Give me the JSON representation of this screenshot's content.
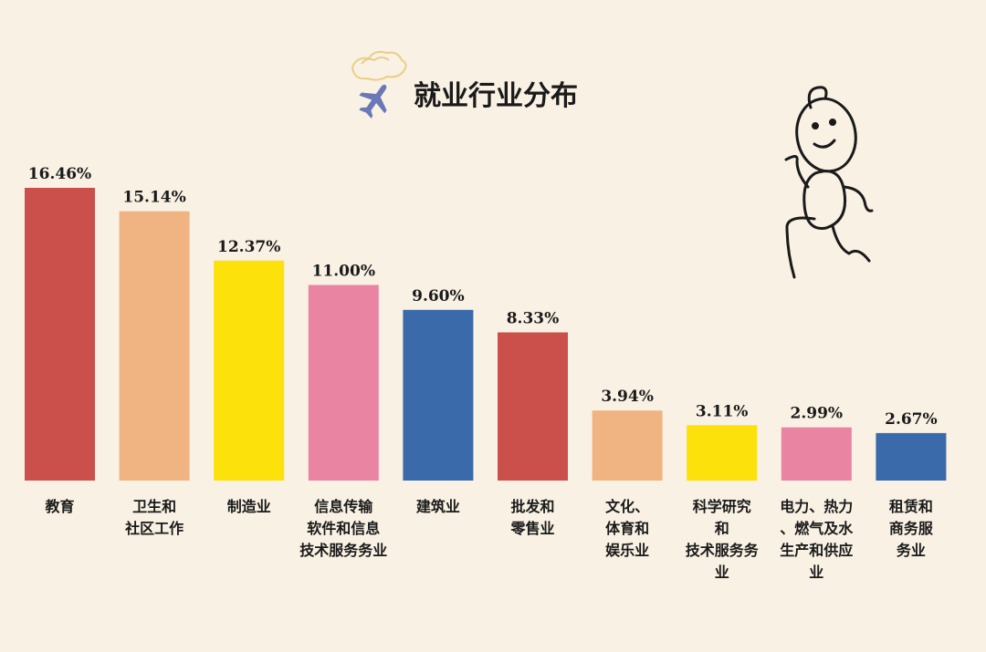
{
  "chart_data": {
    "type": "bar",
    "title": "就业行业分布",
    "categories": [
      [
        "教育"
      ],
      [
        "卫生和",
        "社区工作"
      ],
      [
        "制造业"
      ],
      [
        "信息传输",
        "软件和信息",
        "技术服务务业"
      ],
      [
        "建筑业"
      ],
      [
        "批发和",
        "零售业"
      ],
      [
        "文化、",
        "体育和",
        "娱乐业"
      ],
      [
        "科学研究",
        "和",
        "技术服务务",
        "业"
      ],
      [
        "电力、热力",
        "、燃气及水",
        "生产和供应",
        "业"
      ],
      [
        "租赁和",
        "商务服",
        "务业"
      ]
    ],
    "values": [
      16.46,
      15.14,
      12.37,
      11.0,
      9.6,
      8.33,
      3.94,
      3.11,
      2.99,
      2.67
    ],
    "value_labels": [
      "16.46%",
      "15.14%",
      "12.37%",
      "11.00%",
      "9.60%",
      "8.33%",
      "3.94%",
      "3.11%",
      "2.99%",
      "2.67%"
    ],
    "colors": [
      "#cb4f4a",
      "#efb482",
      "#fde10a",
      "#e985a2",
      "#3a6aaa",
      "#cb4f4a",
      "#efb482",
      "#fde10a",
      "#e985a2",
      "#3a6aaa"
    ],
    "ylim": [
      0,
      17
    ],
    "grid": false,
    "legend": "none"
  },
  "decor": {
    "plane_icon": "airplane-icon",
    "cloud_icon": "cloud-icon",
    "figure_icon": "running-stick-figure-icon"
  }
}
